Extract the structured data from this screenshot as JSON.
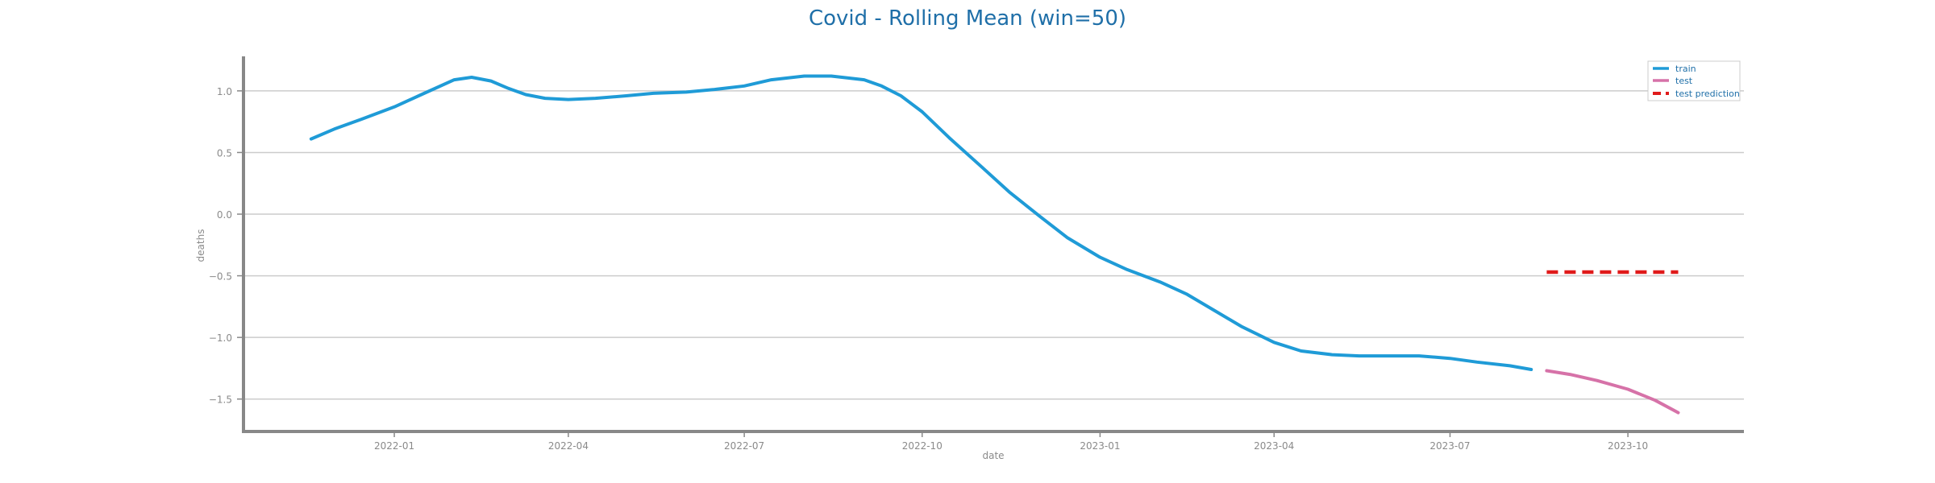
{
  "chart_data": {
    "type": "line",
    "title": "Covid - Rolling Mean (win=50)",
    "xlabel": "date",
    "ylabel": "deaths",
    "xlim": [
      "2021-10-15",
      "2023-11-30"
    ],
    "ylim": [
      -1.75,
      1.28
    ],
    "grid": "horizontal",
    "legend_position": "top-right",
    "yticks": [
      1.0,
      0.5,
      0.0,
      -0.5,
      -1.0,
      -1.5
    ],
    "ytick_labels": [
      "1.0",
      "0.5",
      "0.0",
      "−0.5",
      "−1.0",
      "−1.5"
    ],
    "xticks": [
      "2022-01-01",
      "2022-04-01",
      "2022-07-01",
      "2022-10-01",
      "2023-01-01",
      "2023-04-01",
      "2023-07-01",
      "2023-10-01"
    ],
    "xtick_labels": [
      "2022-01",
      "2022-04",
      "2022-07",
      "2022-10",
      "2023-01",
      "2023-04",
      "2023-07",
      "2023-10"
    ],
    "series": [
      {
        "name": "train",
        "color": "#1f9bd7",
        "style": "solid",
        "x": [
          "2021-11-19",
          "2021-12-01",
          "2021-12-15",
          "2022-01-01",
          "2022-01-15",
          "2022-02-01",
          "2022-02-10",
          "2022-02-20",
          "2022-03-01",
          "2022-03-10",
          "2022-03-20",
          "2022-04-01",
          "2022-04-15",
          "2022-05-01",
          "2022-05-15",
          "2022-06-01",
          "2022-06-15",
          "2022-07-01",
          "2022-07-15",
          "2022-08-01",
          "2022-08-15",
          "2022-09-01",
          "2022-09-10",
          "2022-09-20",
          "2022-10-01",
          "2022-10-15",
          "2022-11-01",
          "2022-11-15",
          "2022-12-01",
          "2022-12-15",
          "2023-01-01",
          "2023-01-15",
          "2023-02-01",
          "2023-02-15",
          "2023-03-01",
          "2023-03-15",
          "2023-04-01",
          "2023-04-15",
          "2023-05-01",
          "2023-05-15",
          "2023-06-01",
          "2023-06-15",
          "2023-07-01",
          "2023-07-15",
          "2023-08-01",
          "2023-08-12"
        ],
        "y": [
          0.61,
          0.69,
          0.77,
          0.87,
          0.97,
          1.09,
          1.11,
          1.08,
          1.02,
          0.97,
          0.94,
          0.93,
          0.94,
          0.96,
          0.98,
          0.99,
          1.01,
          1.04,
          1.09,
          1.12,
          1.12,
          1.09,
          1.04,
          0.96,
          0.83,
          0.62,
          0.38,
          0.18,
          -0.02,
          -0.19,
          -0.35,
          -0.45,
          -0.55,
          -0.65,
          -0.78,
          -0.91,
          -1.04,
          -1.11,
          -1.14,
          -1.15,
          -1.15,
          -1.15,
          -1.17,
          -1.2,
          -1.23,
          -1.26
        ]
      },
      {
        "name": "test",
        "color": "#d672a8",
        "style": "solid",
        "x": [
          "2023-08-20",
          "2023-09-01",
          "2023-09-15",
          "2023-10-01",
          "2023-10-15",
          "2023-10-27"
        ],
        "y": [
          -1.27,
          -1.3,
          -1.35,
          -1.42,
          -1.51,
          -1.61
        ]
      },
      {
        "name": "test prediction",
        "color": "#e01b1b",
        "style": "dashed",
        "x": [
          "2023-08-20",
          "2023-10-27"
        ],
        "y": [
          -0.47,
          -0.47
        ]
      }
    ]
  }
}
